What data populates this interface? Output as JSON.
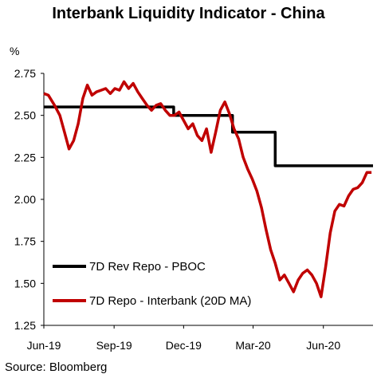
{
  "page": {
    "title": "Interbank Liquidity Indicator - China",
    "source": "Source: Bloomberg"
  },
  "chart_data": {
    "type": "line",
    "title": "Interbank Liquidity Indicator - China",
    "ylabel": "%",
    "xlabel": "",
    "ylim": [
      1.25,
      2.75
    ],
    "yticks": [
      "1.25",
      "1.50",
      "1.75",
      "2.00",
      "2.25",
      "2.50",
      "2.75"
    ],
    "xlim": [
      "2019-06-01",
      "2020-08-05"
    ],
    "xticks": [
      {
        "label": "Jun-19",
        "date": "2019-06-01"
      },
      {
        "label": "Sep-19",
        "date": "2019-09-01"
      },
      {
        "label": "Dec-19",
        "date": "2019-12-01"
      },
      {
        "label": "Mar-20",
        "date": "2020-03-01"
      },
      {
        "label": "Jun-20",
        "date": "2020-06-01"
      }
    ],
    "grid": false,
    "legend_position": "bottom-left",
    "series": [
      {
        "name": "7D Rev Repo - PBOC",
        "color": "#000000",
        "style": "step",
        "x": [
          "2019-06-01",
          "2019-11-18",
          "2020-02-03",
          "2020-03-30",
          "2020-08-05"
        ],
        "y": [
          2.55,
          2.5,
          2.4,
          2.2,
          2.2
        ]
      },
      {
        "name": "7D Repo - Interbank (20D MA)",
        "color": "#c00000",
        "style": "line",
        "x": [
          "2019-06-01",
          "2019-06-07",
          "2019-06-15",
          "2019-06-22",
          "2019-06-28",
          "2019-07-04",
          "2019-07-10",
          "2019-07-16",
          "2019-07-22",
          "2019-07-28",
          "2019-08-03",
          "2019-08-09",
          "2019-08-15",
          "2019-08-21",
          "2019-08-27",
          "2019-09-02",
          "2019-09-08",
          "2019-09-14",
          "2019-09-20",
          "2019-09-26",
          "2019-10-02",
          "2019-10-08",
          "2019-10-14",
          "2019-10-20",
          "2019-10-26",
          "2019-11-01",
          "2019-11-07",
          "2019-11-13",
          "2019-11-19",
          "2019-11-25",
          "2019-12-01",
          "2019-12-07",
          "2019-12-13",
          "2019-12-19",
          "2019-12-25",
          "2019-12-31",
          "2020-01-06",
          "2020-01-12",
          "2020-01-18",
          "2020-01-24",
          "2020-01-30",
          "2020-02-05",
          "2020-02-11",
          "2020-02-17",
          "2020-02-23",
          "2020-02-29",
          "2020-03-06",
          "2020-03-12",
          "2020-03-18",
          "2020-03-24",
          "2020-03-30",
          "2020-04-05",
          "2020-04-11",
          "2020-04-17",
          "2020-04-23",
          "2020-04-29",
          "2020-05-05",
          "2020-05-11",
          "2020-05-17",
          "2020-05-23",
          "2020-05-29",
          "2020-06-04",
          "2020-06-10",
          "2020-06-16",
          "2020-06-22",
          "2020-06-28",
          "2020-07-04",
          "2020-07-10",
          "2020-07-16",
          "2020-07-22",
          "2020-07-28",
          "2020-08-03"
        ],
        "y": [
          2.63,
          2.62,
          2.56,
          2.5,
          2.4,
          2.3,
          2.35,
          2.45,
          2.6,
          2.68,
          2.62,
          2.64,
          2.65,
          2.66,
          2.63,
          2.66,
          2.65,
          2.7,
          2.66,
          2.69,
          2.64,
          2.6,
          2.56,
          2.53,
          2.56,
          2.57,
          2.53,
          2.5,
          2.5,
          2.52,
          2.47,
          2.42,
          2.45,
          2.38,
          2.35,
          2.42,
          2.28,
          2.4,
          2.53,
          2.58,
          2.51,
          2.42,
          2.36,
          2.25,
          2.18,
          2.12,
          2.05,
          1.95,
          1.82,
          1.7,
          1.62,
          1.52,
          1.55,
          1.5,
          1.45,
          1.52,
          1.56,
          1.58,
          1.55,
          1.5,
          1.42,
          1.6,
          1.8,
          1.93,
          1.97,
          1.96,
          2.02,
          2.06,
          2.07,
          2.1,
          2.16,
          2.16
        ]
      }
    ]
  }
}
